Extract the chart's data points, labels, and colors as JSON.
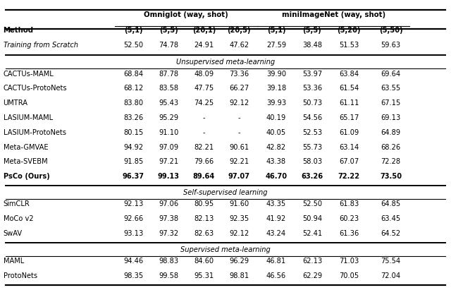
{
  "sub_cols": [
    "(5,1)",
    "(5,5)",
    "(20,1)",
    "(20,5)",
    "(5,1)",
    "(5,5)",
    "(5,20)",
    "(5,50)"
  ],
  "sections": [
    {
      "section_label": null,
      "rows": [
        {
          "method": "Training from Scratch",
          "italic": true,
          "bold": false,
          "values": [
            "52.50",
            "74.78",
            "24.91",
            "47.62",
            "27.59",
            "38.48",
            "51.53",
            "59.63"
          ]
        }
      ]
    },
    {
      "section_label": "Unsupervised meta-learning",
      "rows": [
        {
          "method": "CACTUs-MAML",
          "italic": false,
          "bold": false,
          "values": [
            "68.84",
            "87.78",
            "48.09",
            "73.36",
            "39.90",
            "53.97",
            "63.84",
            "69.64"
          ]
        },
        {
          "method": "CACTUs-ProtoNets",
          "italic": false,
          "bold": false,
          "values": [
            "68.12",
            "83.58",
            "47.75",
            "66.27",
            "39.18",
            "53.36",
            "61.54",
            "63.55"
          ]
        },
        {
          "method": "UMTRA",
          "italic": false,
          "bold": false,
          "values": [
            "83.80",
            "95.43",
            "74.25",
            "92.12",
            "39.93",
            "50.73",
            "61.11",
            "67.15"
          ]
        },
        {
          "method": "LASIUM-MAML",
          "italic": false,
          "bold": false,
          "values": [
            "83.26",
            "95.29",
            "-",
            "-",
            "40.19",
            "54.56",
            "65.17",
            "69.13"
          ]
        },
        {
          "method": "LASIUM-ProtoNets",
          "italic": false,
          "bold": false,
          "values": [
            "80.15",
            "91.10",
            "-",
            "-",
            "40.05",
            "52.53",
            "61.09",
            "64.89"
          ]
        },
        {
          "method": "Meta-GMVAE",
          "italic": false,
          "bold": false,
          "values": [
            "94.92",
            "97.09",
            "82.21",
            "90.61",
            "42.82",
            "55.73",
            "63.14",
            "68.26"
          ]
        },
        {
          "method": "Meta-SVEBM",
          "italic": false,
          "bold": false,
          "values": [
            "91.85",
            "97.21",
            "79.66",
            "92.21",
            "43.38",
            "58.03",
            "67.07",
            "72.28"
          ]
        },
        {
          "method": "PsCo (Ours)",
          "italic": false,
          "bold": true,
          "values": [
            "96.37",
            "99.13",
            "89.64",
            "97.07",
            "46.70",
            "63.26",
            "72.22",
            "73.50"
          ]
        }
      ]
    },
    {
      "section_label": "Self-supervised learning",
      "rows": [
        {
          "method": "SimCLR",
          "italic": false,
          "bold": false,
          "values": [
            "92.13",
            "97.06",
            "80.95",
            "91.60",
            "43.35",
            "52.50",
            "61.83",
            "64.85"
          ]
        },
        {
          "method": "MoCo v2",
          "italic": false,
          "bold": false,
          "values": [
            "92.66",
            "97.38",
            "82.13",
            "92.35",
            "41.92",
            "50.94",
            "60.23",
            "63.45"
          ]
        },
        {
          "method": "SwAV",
          "italic": false,
          "bold": false,
          "values": [
            "93.13",
            "97.32",
            "82.63",
            "92.12",
            "43.24",
            "52.41",
            "61.36",
            "64.52"
          ]
        }
      ]
    },
    {
      "section_label": "Supervised meta-learning",
      "rows": [
        {
          "method": "MAML",
          "italic": false,
          "bold": false,
          "values": [
            "94.46",
            "98.83",
            "84.60",
            "96.29",
            "46.81",
            "62.13",
            "71.03",
            "75.54"
          ]
        },
        {
          "method": "ProtoNets",
          "italic": false,
          "bold": false,
          "values": [
            "98.35",
            "99.58",
            "95.31",
            "98.81",
            "46.56",
            "62.29",
            "70.05",
            "72.04"
          ]
        }
      ]
    }
  ]
}
